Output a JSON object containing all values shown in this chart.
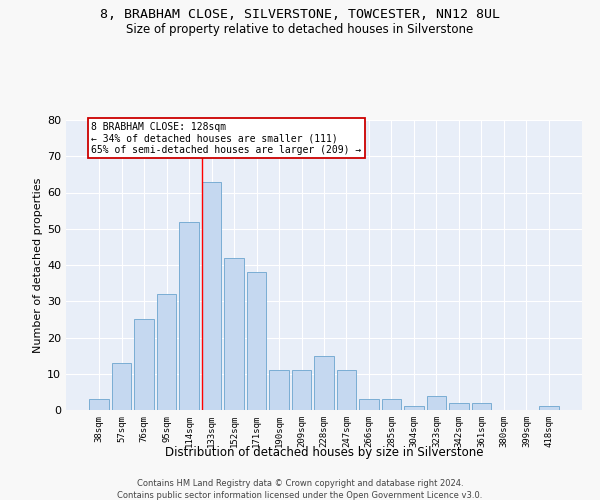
{
  "title": "8, BRABHAM CLOSE, SILVERSTONE, TOWCESTER, NN12 8UL",
  "subtitle": "Size of property relative to detached houses in Silverstone",
  "xlabel": "Distribution of detached houses by size in Silverstone",
  "ylabel": "Number of detached properties",
  "categories": [
    "38sqm",
    "57sqm",
    "76sqm",
    "95sqm",
    "114sqm",
    "133sqm",
    "152sqm",
    "171sqm",
    "190sqm",
    "209sqm",
    "228sqm",
    "247sqm",
    "266sqm",
    "285sqm",
    "304sqm",
    "323sqm",
    "342sqm",
    "361sqm",
    "380sqm",
    "399sqm",
    "418sqm"
  ],
  "values": [
    3,
    13,
    25,
    32,
    52,
    63,
    42,
    38,
    11,
    11,
    15,
    11,
    3,
    3,
    1,
    4,
    2,
    2,
    0,
    0,
    1
  ],
  "bar_color": "#c5d8f0",
  "bar_edge_color": "#7aadd4",
  "red_line_x": 4.575,
  "annotation_text": "8 BRABHAM CLOSE: 128sqm\n← 34% of detached houses are smaller (111)\n65% of semi-detached houses are larger (209) →",
  "annotation_box_color": "#ffffff",
  "annotation_box_edge_color": "#cc0000",
  "ylim": [
    0,
    80
  ],
  "yticks": [
    0,
    10,
    20,
    30,
    40,
    50,
    60,
    70,
    80
  ],
  "background_color": "#e8eef8",
  "grid_color": "#ffffff",
  "fig_background": "#f8f8f8",
  "footer1": "Contains HM Land Registry data © Crown copyright and database right 2024.",
  "footer2": "Contains public sector information licensed under the Open Government Licence v3.0."
}
